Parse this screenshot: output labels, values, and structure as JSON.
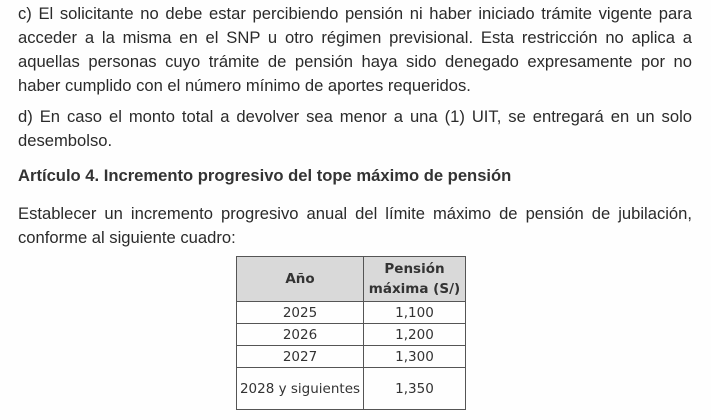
{
  "paragraphs": {
    "c": "c) El solicitante no debe estar percibiendo pensión ni haber iniciado trámite vigente para acceder a la misma en el SNP u otro régimen previsional. Esta restricción no aplica a aquellas personas cuyo trámite de pensión haya sido denegado expresamente por no haber cumplido con el número mínimo de aportes requeridos.",
    "d": "d) En caso el monto total a devolver sea menor a una (1) UIT, se entregará en un solo desembolso.",
    "heading": "Artículo 4. Incremento progresivo del tope máximo de pensión",
    "intro": "Establecer un incremento progresivo anual del límite máximo de pensión de jubilación, conforme al siguiente cuadro:"
  },
  "table": {
    "headers": [
      "Año",
      "Pensión máxima (S/)"
    ],
    "rows": [
      [
        "2025",
        "1,100"
      ],
      [
        "2026",
        "1,200"
      ],
      [
        "2027",
        "1,300"
      ],
      [
        "2028 y siguientes",
        "1,350"
      ]
    ]
  }
}
